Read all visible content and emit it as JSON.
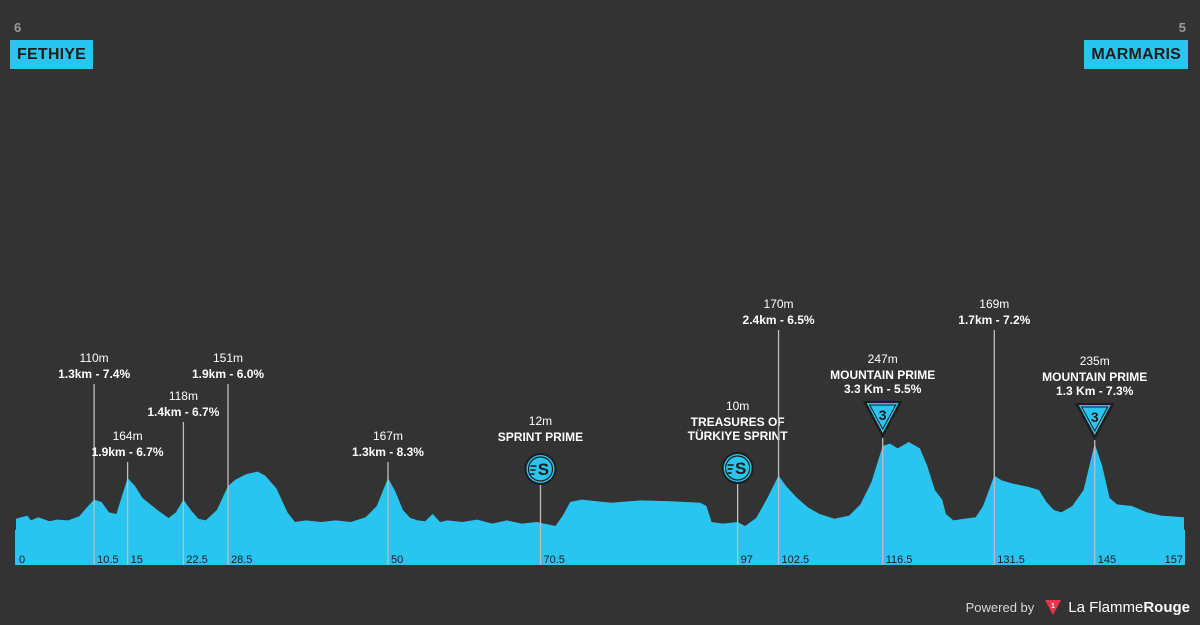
{
  "start": {
    "stage_number": "6",
    "town": "FETHIYE"
  },
  "finish": {
    "stage_number": "5",
    "town": "MARMARIS"
  },
  "footer": {
    "powered_by": "Powered by",
    "brand_part1": "La Flamme",
    "brand_part2": "Rouge"
  },
  "colors": {
    "background": "#333333",
    "profile_fill": "#29c5f0",
    "marker_line": "#bdbdbd",
    "text": "#ffffff",
    "km_labels": "#1d1d1d"
  },
  "chart_data": {
    "type": "area",
    "xlabel": "",
    "ylabel": "",
    "x_unit": "km",
    "xlim": [
      0,
      157
    ],
    "distance_ticks": [
      0,
      10.5,
      15,
      22.5,
      28.5,
      50,
      70.5,
      97,
      102.5,
      116.5,
      131.5,
      145,
      157
    ],
    "profile": [
      [
        0,
        14
      ],
      [
        1.5,
        18
      ],
      [
        2,
        12
      ],
      [
        3,
        16
      ],
      [
        4.5,
        11
      ],
      [
        5.5,
        13
      ],
      [
        7,
        12
      ],
      [
        8.5,
        17
      ],
      [
        9.5,
        28
      ],
      [
        10.5,
        38
      ],
      [
        11.5,
        35
      ],
      [
        12.5,
        22
      ],
      [
        13.5,
        20
      ],
      [
        15,
        65
      ],
      [
        16,
        55
      ],
      [
        17,
        40
      ],
      [
        19,
        25
      ],
      [
        20.5,
        15
      ],
      [
        21.5,
        22
      ],
      [
        22.5,
        38
      ],
      [
        23.5,
        25
      ],
      [
        24.5,
        14
      ],
      [
        25.5,
        12
      ],
      [
        27,
        25
      ],
      [
        28.5,
        55
      ],
      [
        29.5,
        63
      ],
      [
        31,
        70
      ],
      [
        32.5,
        73
      ],
      [
        33.5,
        68
      ],
      [
        35,
        52
      ],
      [
        36.5,
        22
      ],
      [
        37.5,
        10
      ],
      [
        39,
        12
      ],
      [
        41,
        10
      ],
      [
        43,
        12
      ],
      [
        45,
        10
      ],
      [
        47,
        16
      ],
      [
        48.5,
        30
      ],
      [
        50,
        65
      ],
      [
        51,
        48
      ],
      [
        52,
        25
      ],
      [
        53,
        15
      ],
      [
        54,
        12
      ],
      [
        55,
        11
      ],
      [
        56,
        20
      ],
      [
        57,
        10
      ],
      [
        58,
        12
      ],
      [
        60,
        10
      ],
      [
        62,
        13
      ],
      [
        64,
        8
      ],
      [
        66,
        12
      ],
      [
        68,
        8
      ],
      [
        70,
        10
      ],
      [
        71,
        8
      ],
      [
        72.5,
        5
      ],
      [
        73.5,
        18
      ],
      [
        74.5,
        35
      ],
      [
        76,
        38
      ],
      [
        80,
        34
      ],
      [
        84,
        37
      ],
      [
        88,
        36
      ],
      [
        92,
        34
      ],
      [
        92.8,
        30
      ],
      [
        93.5,
        10
      ],
      [
        95,
        8
      ],
      [
        97,
        10
      ],
      [
        98,
        5
      ],
      [
        99.5,
        15
      ],
      [
        101,
        40
      ],
      [
        102.5,
        68
      ],
      [
        103.5,
        55
      ],
      [
        105,
        40
      ],
      [
        106.5,
        28
      ],
      [
        108,
        20
      ],
      [
        110,
        14
      ],
      [
        112,
        18
      ],
      [
        113.5,
        32
      ],
      [
        115,
        60
      ],
      [
        116.5,
        105
      ],
      [
        117.5,
        108
      ],
      [
        118.5,
        102
      ],
      [
        120,
        110
      ],
      [
        121.5,
        102
      ],
      [
        122.5,
        80
      ],
      [
        123.5,
        50
      ],
      [
        124.5,
        38
      ],
      [
        125,
        20
      ],
      [
        126,
        12
      ],
      [
        127.5,
        14
      ],
      [
        129,
        16
      ],
      [
        130,
        30
      ],
      [
        131.5,
        68
      ],
      [
        132.5,
        62
      ],
      [
        134,
        58
      ],
      [
        136,
        54
      ],
      [
        137.5,
        50
      ],
      [
        138.5,
        35
      ],
      [
        139.5,
        25
      ],
      [
        140.5,
        22
      ],
      [
        142,
        30
      ],
      [
        143.5,
        50
      ],
      [
        145,
        108
      ],
      [
        146,
        80
      ],
      [
        147,
        40
      ],
      [
        148,
        32
      ],
      [
        150,
        30
      ],
      [
        152,
        22
      ],
      [
        154,
        18
      ],
      [
        157,
        16
      ]
    ],
    "annotations": [
      {
        "km": 10.5,
        "altitude": "110m",
        "climb": "1.3km - 7.4%"
      },
      {
        "km": 15,
        "altitude": "164m",
        "climb": "1.9km - 6.7%"
      },
      {
        "km": 22.5,
        "altitude": "118m",
        "climb": "1.4km - 6.7%"
      },
      {
        "km": 28.5,
        "altitude": "151m",
        "climb": "1.9km - 6.0%"
      },
      {
        "km": 50,
        "altitude": "167m",
        "climb": "1.3km - 8.3%"
      },
      {
        "km": 70.5,
        "altitude": "12m",
        "lines": [
          "SPRINT PRIME"
        ],
        "icon": "sprint-icon"
      },
      {
        "km": 97,
        "altitude": "10m",
        "lines": [
          "TREASURES OF",
          "TÜRKIYE SPRINT"
        ],
        "icon": "sprint-icon"
      },
      {
        "km": 102.5,
        "altitude": "170m",
        "climb": "2.4km - 6.5%"
      },
      {
        "km": 116.5,
        "altitude": "247m",
        "lines": [
          "MOUNTAIN PRIME",
          "3.3 Km - 5.5%"
        ],
        "icon": "kom-cat3-icon",
        "category": "3"
      },
      {
        "km": 131.5,
        "altitude": "169m",
        "climb": "1.7km - 7.2%"
      },
      {
        "km": 145,
        "altitude": "235m",
        "lines": [
          "MOUNTAIN PRIME",
          "1.3 Km - 7.3%"
        ],
        "icon": "kom-cat3-icon",
        "category": "3"
      }
    ]
  }
}
